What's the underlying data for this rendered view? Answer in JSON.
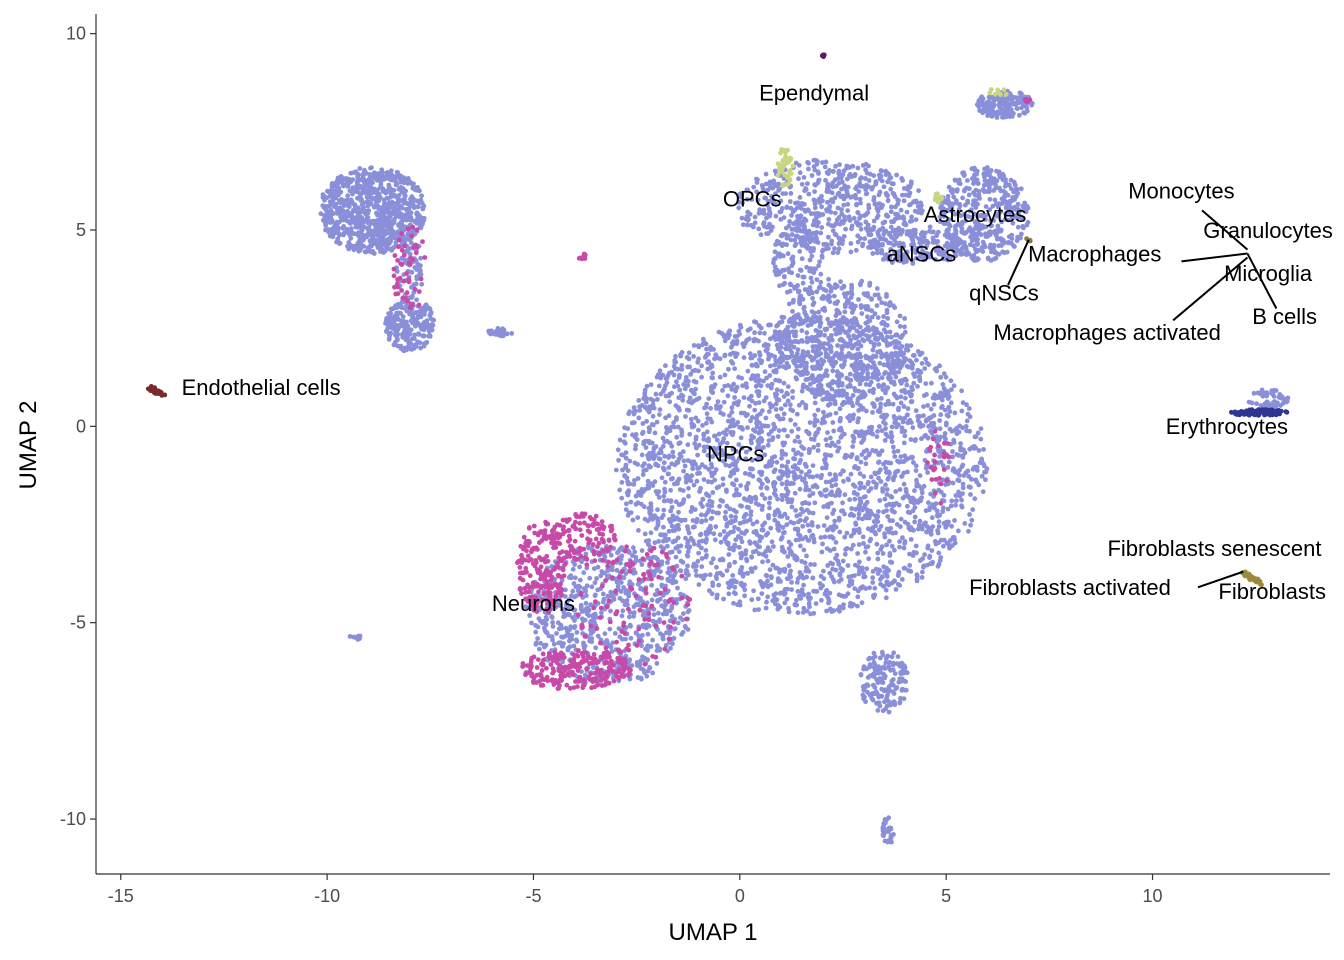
{
  "chart_data": {
    "type": "scatter",
    "title": "",
    "xlabel": "UMAP 1",
    "ylabel": "UMAP 2",
    "xlim": [
      -15.6,
      14.3
    ],
    "ylim": [
      -11.4,
      10.5
    ],
    "xticks": [
      -15,
      -10,
      -5,
      0,
      5,
      10
    ],
    "yticks": [
      -10,
      -5,
      0,
      5,
      10
    ],
    "xtick_labels": [
      "-15",
      "-10",
      "-5",
      "0",
      "5",
      "10"
    ],
    "ytick_labels": [
      "-10",
      "-5",
      "0",
      "5",
      "10"
    ],
    "grid": false,
    "legend": "none",
    "colors": {
      "npc": "#8a8fd9",
      "neuron": "#c84aa8",
      "opc": "#c8d680",
      "endothelial": "#7a2a2a",
      "erythrocyte": "#2f3593",
      "ependymal": "#5a1f5a",
      "fibroblast": "#9a8a3a",
      "macrophage": "#8a7a40"
    },
    "clusters": [
      {
        "name": "NPC",
        "color": "npc",
        "shape": "ellipse",
        "cx": 1.5,
        "cy": -1.0,
        "rx": 4.5,
        "ry": 3.8,
        "n": 2800
      },
      {
        "name": "NPC",
        "color": "npc",
        "shape": "ellipse",
        "cx": 2.5,
        "cy": 2.2,
        "rx": 1.6,
        "ry": 1.6,
        "n": 500
      },
      {
        "name": "NPC",
        "color": "npc",
        "shape": "ellipse",
        "cx": 2.2,
        "cy": 5.6,
        "rx": 2.3,
        "ry": 1.2,
        "n": 550
      },
      {
        "name": "NPC",
        "color": "npc",
        "shape": "ellipse",
        "cx": 1.4,
        "cy": 4.2,
        "rx": 0.6,
        "ry": 1.0,
        "n": 120
      },
      {
        "name": "NPC",
        "color": "npc",
        "shape": "ellipse",
        "cx": 4.3,
        "cy": 4.6,
        "rx": 1.2,
        "ry": 0.5,
        "n": 180
      },
      {
        "name": "NPC",
        "color": "npc",
        "shape": "ellipse",
        "cx": 5.9,
        "cy": 5.4,
        "rx": 1.1,
        "ry": 1.2,
        "n": 400
      },
      {
        "name": "NPC",
        "color": "npc",
        "shape": "ellipse",
        "cx": 6.4,
        "cy": 8.2,
        "rx": 0.7,
        "ry": 0.35,
        "n": 160
      },
      {
        "name": "NPC",
        "color": "npc",
        "shape": "ellipse",
        "cx": -8.9,
        "cy": 5.5,
        "rx": 1.3,
        "ry": 1.1,
        "n": 800
      },
      {
        "name": "NPC",
        "color": "npc",
        "shape": "ellipse",
        "cx": -8.0,
        "cy": 2.6,
        "rx": 0.6,
        "ry": 0.7,
        "n": 220
      },
      {
        "name": "NPC",
        "color": "npc",
        "shape": "ellipse",
        "cx": -8.0,
        "cy": 4.0,
        "rx": 0.35,
        "ry": 0.8,
        "n": 70
      },
      {
        "name": "NPC",
        "color": "npc",
        "shape": "ellipse",
        "cx": -3.2,
        "cy": -4.8,
        "rx": 2.0,
        "ry": 1.8,
        "n": 700
      },
      {
        "name": "NPC",
        "color": "npc",
        "shape": "ellipse",
        "cx": 3.5,
        "cy": -6.5,
        "rx": 0.6,
        "ry": 0.8,
        "n": 150
      },
      {
        "name": "NPC",
        "color": "npc",
        "shape": "ellipse",
        "cx": -5.8,
        "cy": 2.4,
        "rx": 0.3,
        "ry": 0.1,
        "n": 25
      },
      {
        "name": "NPC",
        "color": "npc",
        "shape": "ellipse",
        "cx": 3.6,
        "cy": -10.3,
        "rx": 0.15,
        "ry": 0.35,
        "n": 30
      },
      {
        "name": "NPC",
        "color": "npc",
        "shape": "ellipse",
        "cx": 12.8,
        "cy": 0.7,
        "rx": 0.5,
        "ry": 0.25,
        "n": 50
      },
      {
        "name": "NPC",
        "color": "npc",
        "shape": "ellipse",
        "cx": -9.3,
        "cy": -5.35,
        "rx": 0.15,
        "ry": 0.08,
        "n": 8
      },
      {
        "name": "Neurons",
        "color": "neuron",
        "shape": "ellipse",
        "cx": -4.8,
        "cy": -3.6,
        "rx": 0.6,
        "ry": 1.2,
        "n": 200
      },
      {
        "name": "Neurons",
        "color": "neuron",
        "shape": "ellipse",
        "cx": -3.8,
        "cy": -2.8,
        "rx": 0.8,
        "ry": 0.6,
        "n": 120
      },
      {
        "name": "Neurons",
        "color": "neuron",
        "shape": "ellipse",
        "cx": -4.0,
        "cy": -6.2,
        "rx": 1.4,
        "ry": 0.5,
        "n": 220
      },
      {
        "name": "Neurons",
        "color": "neuron",
        "shape": "ellipse",
        "cx": -2.6,
        "cy": -4.5,
        "rx": 1.4,
        "ry": 1.6,
        "n": 110
      },
      {
        "name": "Neurons",
        "color": "neuron",
        "shape": "ellipse",
        "cx": -8.0,
        "cy": 4.0,
        "rx": 0.4,
        "ry": 1.2,
        "n": 50
      },
      {
        "name": "Neurons",
        "color": "neuron",
        "shape": "ellipse",
        "cx": 4.8,
        "cy": -1.0,
        "rx": 0.3,
        "ry": 1.0,
        "n": 25
      },
      {
        "name": "Neurons",
        "color": "neuron",
        "shape": "ellipse",
        "cx": -3.8,
        "cy": 4.3,
        "rx": 0.1,
        "ry": 0.1,
        "n": 8
      },
      {
        "name": "Neurons",
        "color": "neuron",
        "shape": "ellipse",
        "cx": 7.0,
        "cy": 8.3,
        "rx": 0.1,
        "ry": 0.05,
        "n": 6
      },
      {
        "name": "OPCs",
        "color": "opc",
        "shape": "ellipse",
        "cx": 1.1,
        "cy": 6.6,
        "rx": 0.2,
        "ry": 0.5,
        "n": 40
      },
      {
        "name": "OPCs",
        "color": "opc",
        "shape": "ellipse",
        "cx": 4.8,
        "cy": 5.8,
        "rx": 0.1,
        "ry": 0.15,
        "n": 12
      },
      {
        "name": "OPCs",
        "color": "opc",
        "shape": "ellipse",
        "cx": 6.2,
        "cy": 8.5,
        "rx": 0.3,
        "ry": 0.1,
        "n": 10
      },
      {
        "name": "Endothelial cells",
        "color": "endothelial",
        "shape": "line",
        "x1": -14.3,
        "y1": 1.0,
        "x2": -14.0,
        "y2": 0.8,
        "n": 40
      },
      {
        "name": "Erythrocytes",
        "color": "erythrocyte",
        "shape": "ellipse",
        "cx": 12.6,
        "cy": 0.35,
        "rx": 0.7,
        "ry": 0.08,
        "n": 90
      },
      {
        "name": "Ependymal",
        "color": "ependymal",
        "shape": "ellipse",
        "cx": 2.0,
        "cy": 9.45,
        "rx": 0.05,
        "ry": 0.05,
        "n": 6
      },
      {
        "name": "Fibroblasts",
        "color": "fibroblast",
        "shape": "line",
        "x1": 12.2,
        "y1": -3.7,
        "x2": 12.6,
        "y2": -4.0,
        "n": 30
      },
      {
        "name": "Macrophages",
        "color": "macrophage",
        "shape": "ellipse",
        "cx": 7.0,
        "cy": 4.75,
        "rx": 0.06,
        "ry": 0.06,
        "n": 5
      }
    ],
    "annotations": [
      {
        "text": "Ependymal",
        "x": 1.8,
        "y": 8.3,
        "anchor": "middle"
      },
      {
        "text": "OPCs",
        "x": 0.3,
        "y": 5.6,
        "anchor": "middle"
      },
      {
        "text": "Astrocytes",
        "x": 5.7,
        "y": 5.2,
        "anchor": "middle"
      },
      {
        "text": "aNSCs",
        "x": 4.4,
        "y": 4.2,
        "anchor": "middle"
      },
      {
        "text": "qNSCs",
        "x": 6.4,
        "y": 3.2,
        "anchor": "middle"
      },
      {
        "text": "Macrophages",
        "x": 8.6,
        "y": 4.2,
        "anchor": "middle"
      },
      {
        "text": "Macrophages activated",
        "x": 8.9,
        "y": 2.2,
        "anchor": "middle"
      },
      {
        "text": "Monocytes",
        "x": 10.7,
        "y": 5.8,
        "anchor": "middle"
      },
      {
        "text": "Granulocytes",
        "x": 12.8,
        "y": 4.8,
        "anchor": "middle"
      },
      {
        "text": "Microglia",
        "x": 12.8,
        "y": 3.7,
        "anchor": "middle"
      },
      {
        "text": "B cells",
        "x": 13.2,
        "y": 2.6,
        "anchor": "middle"
      },
      {
        "text": "Endothelial cells",
        "x": -11.6,
        "y": 0.8,
        "anchor": "middle"
      },
      {
        "text": "Erythrocytes",
        "x": 11.8,
        "y": -0.2,
        "anchor": "middle"
      },
      {
        "text": "NPCs",
        "x": -0.1,
        "y": -0.9,
        "anchor": "middle"
      },
      {
        "text": "Neurons",
        "x": -5.0,
        "y": -4.7,
        "anchor": "middle"
      },
      {
        "text": "Fibroblasts senescent",
        "x": 11.5,
        "y": -3.3,
        "anchor": "middle"
      },
      {
        "text": "Fibroblasts activated",
        "x": 8.0,
        "y": -4.3,
        "anchor": "middle"
      },
      {
        "text": "Fibroblasts",
        "x": 12.9,
        "y": -4.4,
        "anchor": "middle"
      }
    ],
    "leader_lines": [
      {
        "x1": 6.5,
        "y1": 3.6,
        "x2": 7.0,
        "y2": 4.75
      },
      {
        "x1": 10.7,
        "y1": 4.2,
        "x2": 12.3,
        "y2": 4.4
      },
      {
        "x1": 10.5,
        "y1": 2.7,
        "x2": 12.3,
        "y2": 4.3
      },
      {
        "x1": 11.2,
        "y1": 5.5,
        "x2": 12.3,
        "y2": 4.5
      },
      {
        "x1": 13.0,
        "y1": 3.0,
        "x2": 12.3,
        "y2": 4.4
      },
      {
        "x1": 11.1,
        "y1": -4.1,
        "x2": 12.2,
        "y2": -3.7
      }
    ]
  }
}
